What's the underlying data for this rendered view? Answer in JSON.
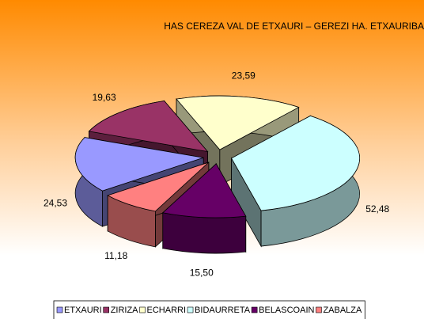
{
  "chart_data": {
    "type": "pie",
    "title": "HAS CEREZA VAL DE ETXAURI – GEREZI HA. ETXAURIBA",
    "categories": [
      "ETXAURI",
      "ZIRIZA",
      "ECHARRI",
      "BIDAURRETA",
      "BELASCOAIN",
      "ZABALZA"
    ],
    "values": [
      24.53,
      19.63,
      23.59,
      52.48,
      15.5,
      11.18
    ],
    "value_labels": [
      "24,53",
      "19,63",
      "23,59",
      "52,48",
      "15,50",
      "11,18"
    ],
    "colors": [
      "#9999ff",
      "#993366",
      "#ffffcc",
      "#ccffff",
      "#660066",
      "#ff8080"
    ],
    "legend": "bottom"
  }
}
